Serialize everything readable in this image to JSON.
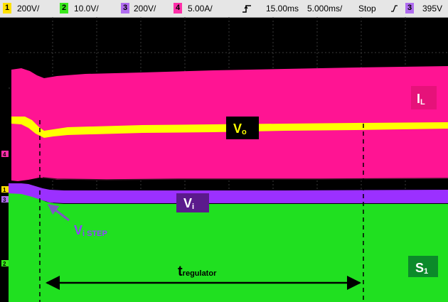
{
  "status_bar": {
    "ch1": {
      "number": "1",
      "scale": "200V/",
      "color": "#ffe100"
    },
    "ch2": {
      "number": "2",
      "scale": "10.0V/",
      "color": "#39e81c"
    },
    "ch3": {
      "number": "3",
      "scale": "200V/",
      "color": "#b06cf0"
    },
    "ch4": {
      "number": "4",
      "scale": "5.00A/",
      "color": "#ff2fa8"
    },
    "trigger_icon": "rising-edge-trigger-icon",
    "delay": "15.00ms",
    "timebase": "5.000ms/",
    "run_state": "Stop",
    "trigger_slope_icon": "trigger-slope-icon",
    "trigger_channel": "3",
    "trigger_level": "395V"
  },
  "chart_data": {
    "type": "line",
    "title": "",
    "xlabel": "",
    "ylabel": "",
    "grid": true,
    "divisions": {
      "horizontal": 10,
      "vertical": 8
    },
    "series": [
      {
        "label": "IL",
        "trace": "inductor current envelope",
        "color": "#ff1493"
      },
      {
        "label": "Vo",
        "trace": "output voltage",
        "color": "#ffff00"
      },
      {
        "label": "Vi",
        "trace": "input voltage",
        "color": "#9b30ff"
      },
      {
        "label": "S1",
        "trace": "switch gate signal",
        "color": "#20e020"
      }
    ],
    "annotations": {
      "il": {
        "main": "I",
        "sub": "L"
      },
      "vo": {
        "main": "V",
        "sub": "o"
      },
      "vi": {
        "main": "V",
        "sub": "i"
      },
      "vi_step": {
        "main": "V",
        "sub": "i STEP"
      },
      "s1": {
        "main": "S",
        "sub": "1"
      },
      "t_regulator": {
        "main": "t",
        "sub": "regulator"
      }
    },
    "left_markers": [
      "4",
      "1",
      "3",
      "2"
    ]
  }
}
